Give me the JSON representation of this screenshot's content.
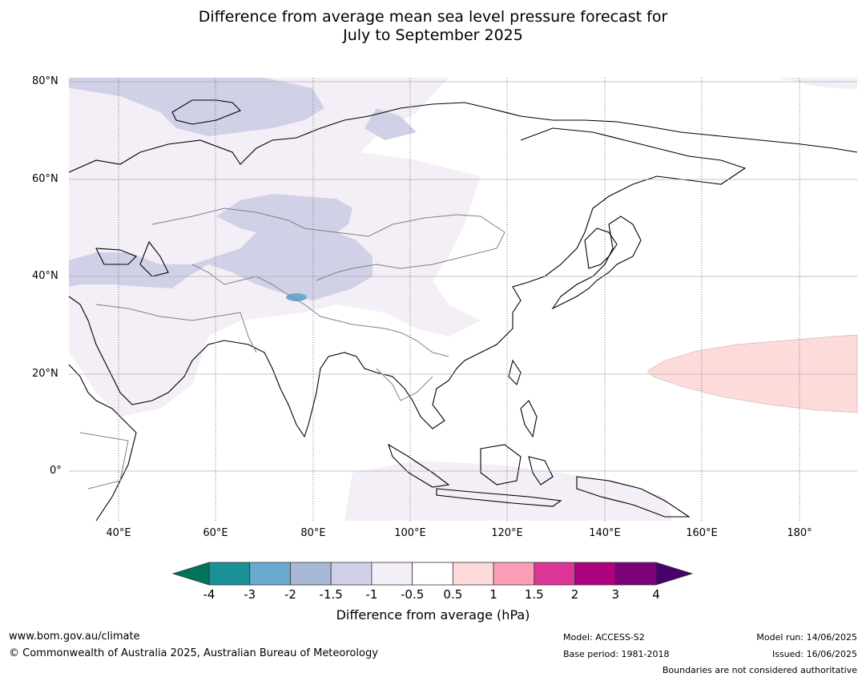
{
  "title": {
    "line1": "Difference from average mean sea level pressure forecast for",
    "line2": "July to September 2025"
  },
  "map": {
    "lat_labels": [
      "80°N",
      "60°N",
      "40°N",
      "20°N",
      "0°"
    ],
    "lon_labels": [
      "40°E",
      "60°E",
      "80°E",
      "100°E",
      "120°E",
      "140°E",
      "160°E",
      "180°"
    ],
    "extent": {
      "lon_min": 30,
      "lon_max": 192,
      "lat_min": -10,
      "lat_max": 81
    }
  },
  "colorbar": {
    "ticks": [
      "-4",
      "-3",
      "-2",
      "-1.5",
      "-1",
      "-0.5",
      "0.5",
      "1",
      "1.5",
      "2",
      "3",
      "4"
    ],
    "colors": [
      "#1a9097",
      "#6aa9d0",
      "#a7b8d4",
      "#d0d1e6",
      "#f4eef7",
      "#ffffff",
      "#fddbdb",
      "#fa9fb5",
      "#dd3497",
      "#ae017e",
      "#7a0177"
    ],
    "under_color": "#00735f",
    "over_color": "#49006a",
    "label": "Difference from average (hPa)"
  },
  "footer": {
    "website": "www.bom.gov.au/climate",
    "copyright": "© Commonwealth of Australia 2025, Australian Bureau of Meteorology",
    "model": "Model: ACCESS-S2",
    "base_period": "Base period: 1981-2018",
    "model_run": "Model run: 14/06/2025",
    "issued": "Issued: 16/06/2025",
    "disclaimer": "Boundaries are not considered authoritative"
  }
}
